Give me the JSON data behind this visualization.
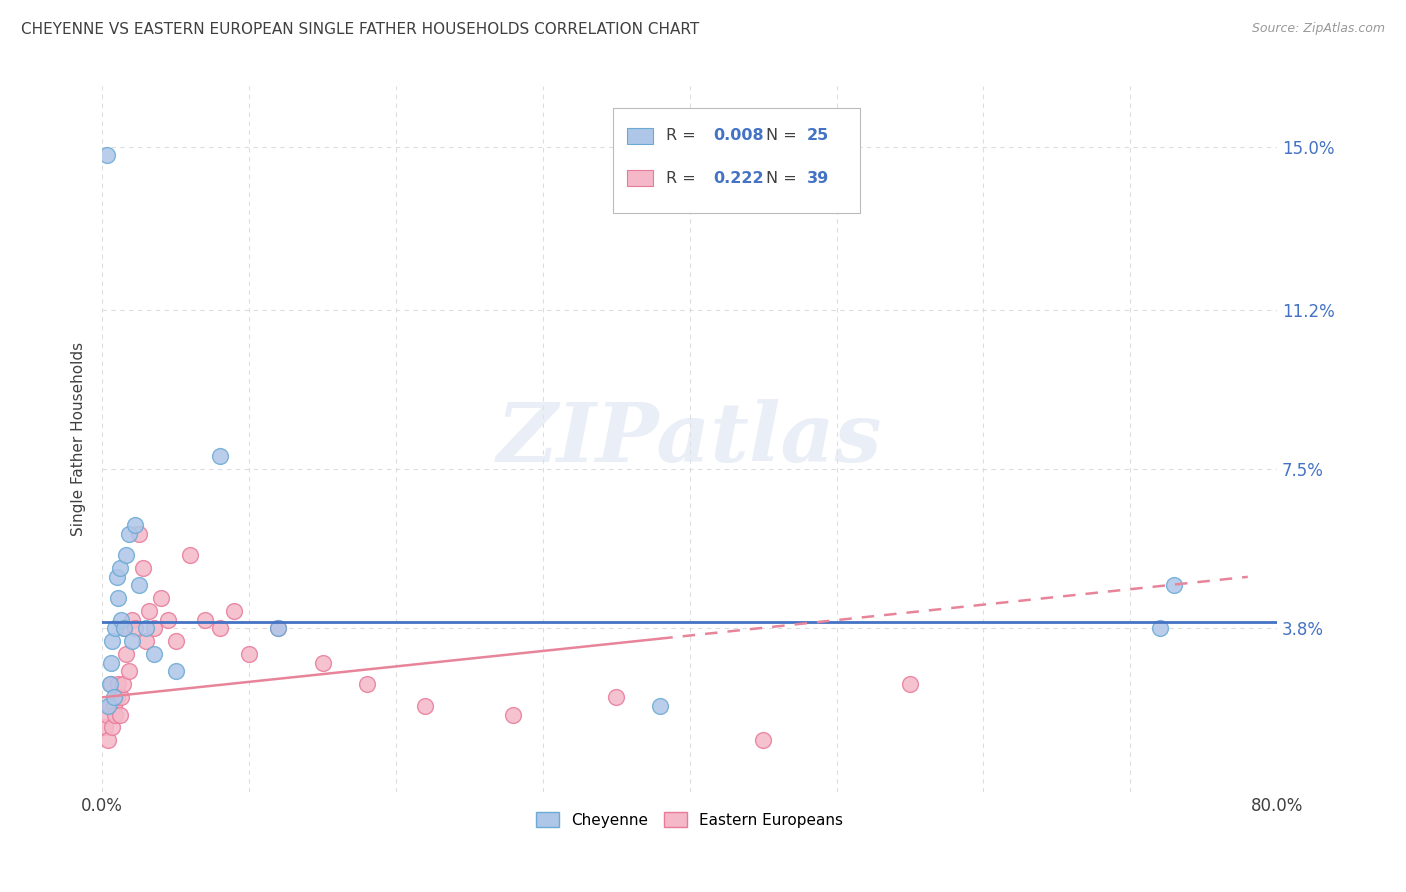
{
  "title": "CHEYENNE VS EASTERN EUROPEAN SINGLE FATHER HOUSEHOLDS CORRELATION CHART",
  "source": "Source: ZipAtlas.com",
  "ylabel": "Single Father Households",
  "xlim": [
    0.0,
    0.8
  ],
  "ylim": [
    0.0,
    0.164
  ],
  "xtick_positions": [
    0.0,
    0.1,
    0.2,
    0.3,
    0.4,
    0.5,
    0.6,
    0.7,
    0.8
  ],
  "xticklabels": [
    "0.0%",
    "",
    "",
    "",
    "",
    "",
    "",
    "",
    "80.0%"
  ],
  "ytick_values": [
    0.038,
    0.075,
    0.112,
    0.15
  ],
  "ytick_labels": [
    "3.8%",
    "7.5%",
    "11.2%",
    "15.0%"
  ],
  "blue_color": "#aec6e8",
  "blue_edge": "#6aaad4",
  "pink_color": "#f4b8c8",
  "pink_edge": "#e87a9a",
  "line_blue": "#4472c4",
  "line_pink": "#e8849a",
  "label1": "Cheyenne",
  "label2": "Eastern Europeans",
  "watermark": "ZIPatlas",
  "cheyenne_x": [
    0.003,
    0.004,
    0.005,
    0.006,
    0.007,
    0.008,
    0.009,
    0.01,
    0.011,
    0.012,
    0.013,
    0.015,
    0.016,
    0.018,
    0.02,
    0.022,
    0.025,
    0.03,
    0.035,
    0.05,
    0.08,
    0.12,
    0.38,
    0.72,
    0.73
  ],
  "cheyenne_y": [
    0.148,
    0.02,
    0.025,
    0.03,
    0.035,
    0.022,
    0.038,
    0.05,
    0.045,
    0.052,
    0.04,
    0.038,
    0.055,
    0.06,
    0.035,
    0.062,
    0.048,
    0.038,
    0.032,
    0.028,
    0.078,
    0.038,
    0.02,
    0.038,
    0.048
  ],
  "eastern_x": [
    0.002,
    0.003,
    0.004,
    0.005,
    0.006,
    0.007,
    0.008,
    0.009,
    0.01,
    0.011,
    0.012,
    0.013,
    0.014,
    0.015,
    0.016,
    0.018,
    0.02,
    0.022,
    0.025,
    0.028,
    0.03,
    0.032,
    0.035,
    0.04,
    0.045,
    0.05,
    0.06,
    0.07,
    0.08,
    0.09,
    0.1,
    0.12,
    0.15,
    0.18,
    0.22,
    0.28,
    0.35,
    0.45,
    0.55
  ],
  "eastern_y": [
    0.015,
    0.018,
    0.012,
    0.02,
    0.025,
    0.015,
    0.02,
    0.018,
    0.022,
    0.025,
    0.018,
    0.022,
    0.025,
    0.038,
    0.032,
    0.028,
    0.04,
    0.038,
    0.06,
    0.052,
    0.035,
    0.042,
    0.038,
    0.045,
    0.04,
    0.035,
    0.055,
    0.04,
    0.038,
    0.042,
    0.032,
    0.038,
    0.03,
    0.025,
    0.02,
    0.018,
    0.022,
    0.012,
    0.025
  ],
  "background_color": "#ffffff",
  "grid_color": "#dddddd",
  "title_color": "#404040"
}
